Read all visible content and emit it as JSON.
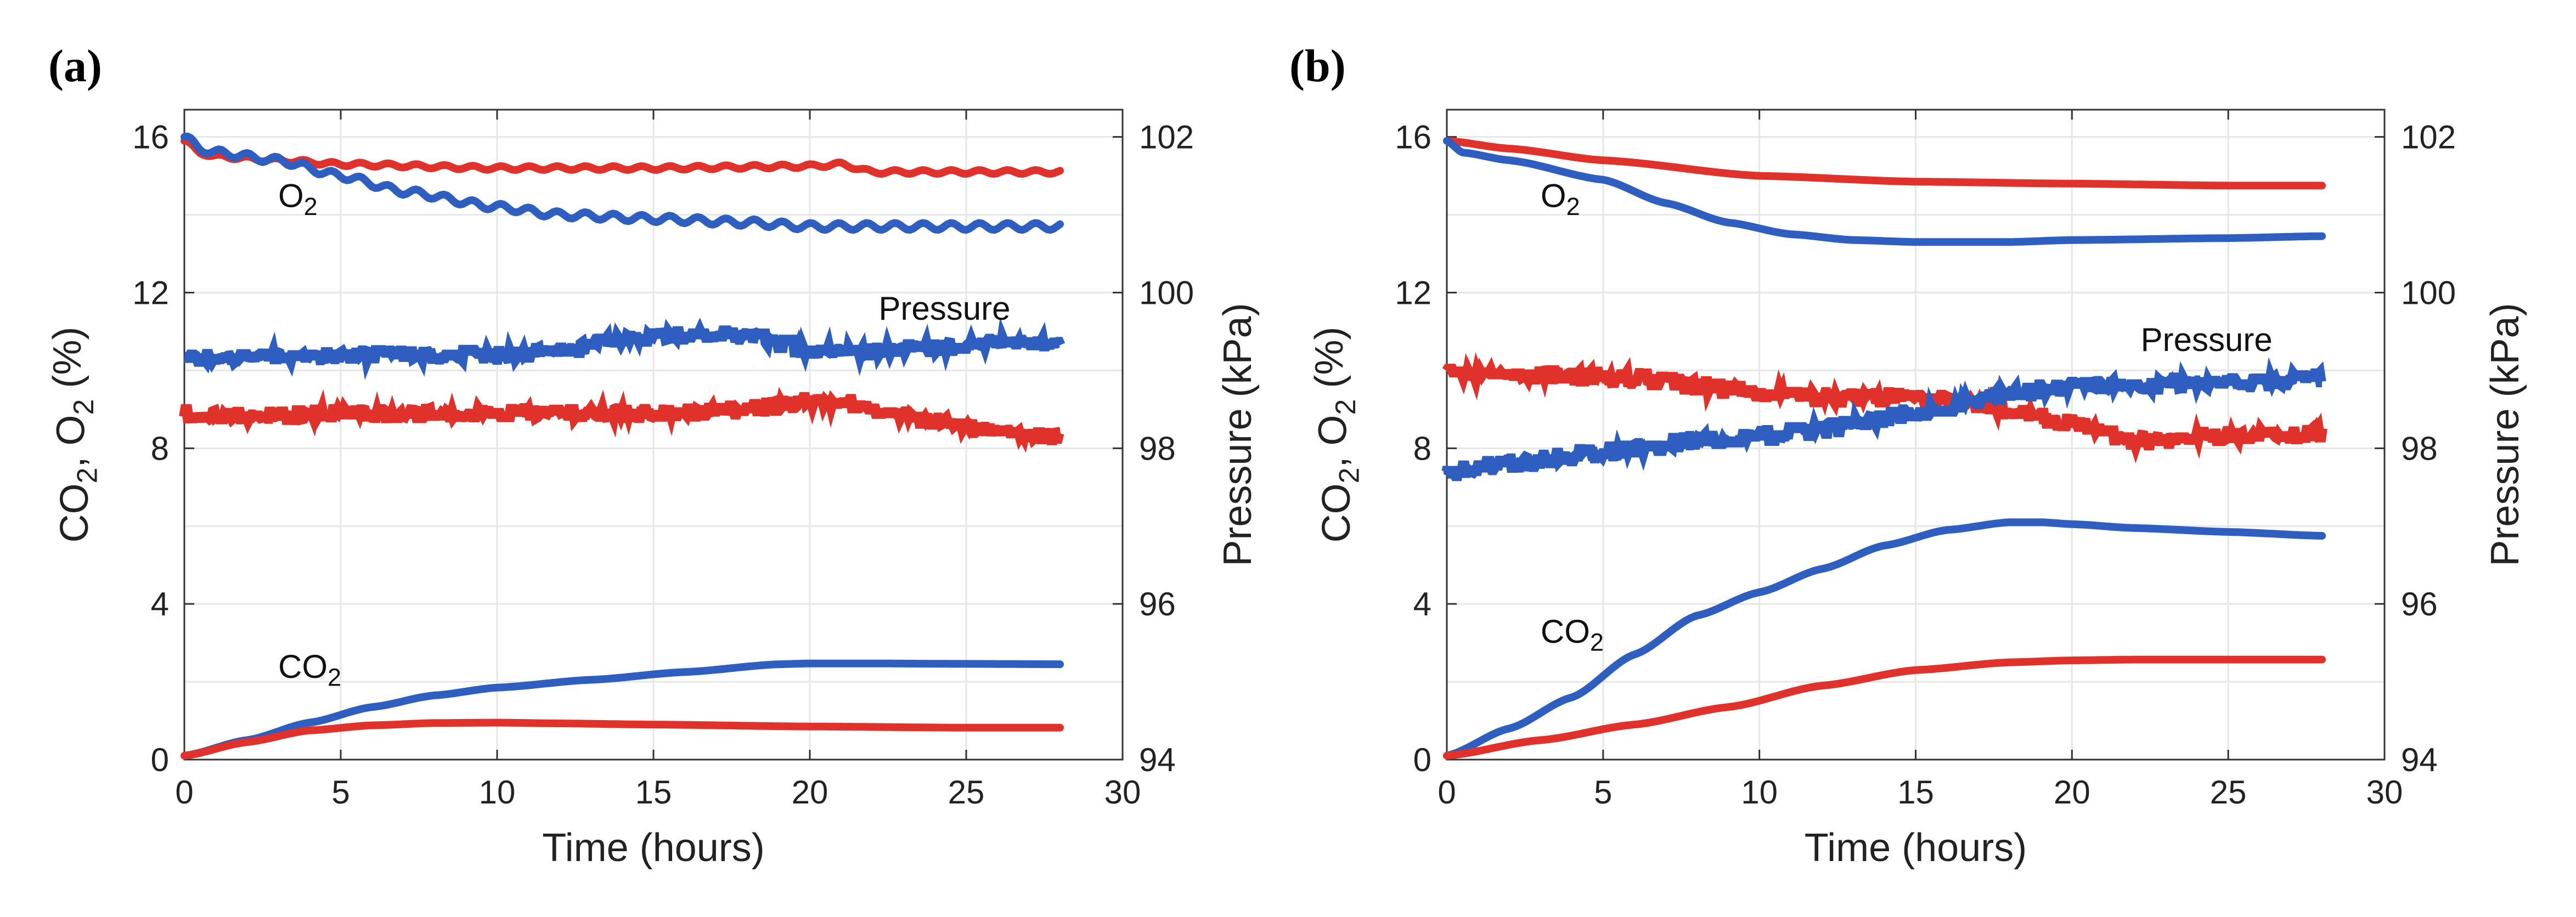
{
  "colors": {
    "red": "#E0322B",
    "blue": "#2E5FC0",
    "axis": "#333333",
    "grid": "#e6e6e6"
  },
  "chart_data": [
    {
      "type": "line",
      "panel_label": "(a)",
      "xlabel": "Time (hours)",
      "ylabel_left": {
        "base": "CO",
        "sub1": "2",
        "mid": ", O",
        "sub2": "2",
        "tail": " (%)"
      },
      "ylabel_right": "Pressure (kPa)",
      "xlim": [
        0,
        30
      ],
      "ylim_left": [
        0,
        16.7
      ],
      "ylim_right": [
        94,
        102.35
      ],
      "xticks": [
        "0",
        "5",
        "10",
        "15",
        "20",
        "25",
        "30"
      ],
      "yticks_left": [
        "0",
        "4",
        "8",
        "12",
        "16"
      ],
      "yticks_right": [
        "94",
        "96",
        "98",
        "100",
        "102"
      ],
      "grid": true,
      "annotations": [
        {
          "base": "O",
          "sub": "2",
          "x": 3.0,
          "y": 14.2
        },
        {
          "text": "Pressure",
          "x": 22.2,
          "y": 11.3
        },
        {
          "base": "CO",
          "sub": "2",
          "x": 3.0,
          "y": 2.1
        }
      ],
      "series": [
        {
          "color": "red",
          "axis": "left",
          "wave": 0.05,
          "x": [
            0,
            0.5,
            1,
            3,
            5,
            10,
            15,
            20,
            21,
            22,
            25,
            28
          ],
          "y": [
            15.9,
            15.6,
            15.5,
            15.4,
            15.3,
            15.2,
            15.2,
            15.25,
            15.3,
            15.1,
            15.1,
            15.1
          ]
        },
        {
          "color": "blue",
          "axis": "left",
          "wave": 0.09,
          "x": [
            0,
            0.5,
            1,
            3,
            5,
            7,
            10,
            12,
            15,
            18,
            20,
            25,
            28
          ],
          "y": [
            16.0,
            15.7,
            15.6,
            15.4,
            15.0,
            14.6,
            14.2,
            14.0,
            13.9,
            13.8,
            13.7,
            13.7,
            13.7
          ]
        },
        {
          "color": "blue",
          "axis": "right",
          "noise": 0.06,
          "style": "pressure",
          "x": [
            0,
            5,
            10,
            12,
            14,
            16,
            18,
            19,
            20,
            22,
            24,
            26,
            28
          ],
          "y": [
            99.15,
            99.2,
            99.2,
            99.25,
            99.4,
            99.45,
            99.45,
            99.35,
            99.25,
            99.25,
            99.3,
            99.35,
            99.35
          ]
        },
        {
          "color": "red",
          "axis": "right",
          "noise": 0.06,
          "style": "pressure",
          "x": [
            0,
            2,
            5,
            10,
            15,
            18,
            20,
            21,
            22,
            24,
            26,
            28
          ],
          "y": [
            98.45,
            98.4,
            98.45,
            98.45,
            98.45,
            98.5,
            98.6,
            98.6,
            98.5,
            98.35,
            98.2,
            98.15
          ]
        },
        {
          "color": "blue",
          "axis": "left",
          "x": [
            0,
            2,
            4,
            6,
            8,
            10,
            13,
            16,
            19,
            20,
            22,
            25,
            28
          ],
          "y": [
            0.1,
            0.5,
            0.95,
            1.35,
            1.65,
            1.85,
            2.05,
            2.25,
            2.45,
            2.47,
            2.47,
            2.46,
            2.45
          ]
        },
        {
          "color": "red",
          "axis": "left",
          "x": [
            0,
            2,
            4,
            6,
            8,
            10,
            12,
            15,
            20,
            25,
            28
          ],
          "y": [
            0.1,
            0.45,
            0.75,
            0.88,
            0.94,
            0.95,
            0.93,
            0.9,
            0.85,
            0.82,
            0.82
          ]
        }
      ]
    },
    {
      "type": "line",
      "panel_label": "(b)",
      "xlabel": "Time (hours)",
      "ylabel_left": {
        "base": "CO",
        "sub1": "2",
        "mid": ", O",
        "sub2": "2",
        "tail": " (%)"
      },
      "ylabel_right": "Pressure (kPa)",
      "xlim": [
        0,
        30
      ],
      "ylim_left": [
        0,
        16.7
      ],
      "ylim_right": [
        94,
        102.35
      ],
      "xticks": [
        "0",
        "5",
        "10",
        "15",
        "20",
        "25",
        "30"
      ],
      "yticks_left": [
        "0",
        "4",
        "8",
        "12",
        "16"
      ],
      "yticks_right": [
        "94",
        "96",
        "98",
        "100",
        "102"
      ],
      "grid": true,
      "annotations": [
        {
          "base": "O",
          "sub": "2",
          "x": 3.0,
          "y": 14.2
        },
        {
          "text": "Pressure",
          "x": 22.2,
          "y": 10.5
        },
        {
          "base": "CO",
          "sub": "2",
          "x": 3.0,
          "y": 3.0
        }
      ],
      "series": [
        {
          "color": "red",
          "axis": "left",
          "x": [
            0,
            2,
            5,
            10,
            15,
            20,
            25,
            28
          ],
          "y": [
            15.9,
            15.7,
            15.4,
            15.0,
            14.85,
            14.8,
            14.75,
            14.75
          ]
        },
        {
          "color": "blue",
          "axis": "left",
          "x": [
            0,
            0.5,
            2,
            5,
            7,
            9,
            11,
            13,
            15,
            18,
            20,
            25,
            28
          ],
          "y": [
            15.9,
            15.6,
            15.4,
            14.9,
            14.3,
            13.8,
            13.5,
            13.35,
            13.3,
            13.3,
            13.35,
            13.4,
            13.45
          ]
        },
        {
          "color": "red",
          "axis": "right",
          "noise": 0.07,
          "style": "pressure",
          "x": [
            0,
            3,
            6,
            8,
            10,
            12,
            15,
            18,
            20,
            22,
            25,
            28
          ],
          "y": [
            98.95,
            98.95,
            98.9,
            98.8,
            98.7,
            98.65,
            98.65,
            98.5,
            98.3,
            98.1,
            98.15,
            98.2
          ]
        },
        {
          "color": "blue",
          "axis": "right",
          "noise": 0.07,
          "style": "pressure",
          "x": [
            0,
            2,
            5,
            8,
            10,
            12,
            15,
            18,
            20,
            25,
            28
          ],
          "y": [
            97.7,
            97.8,
            97.95,
            98.1,
            98.15,
            98.25,
            98.45,
            98.7,
            98.8,
            98.85,
            98.9
          ]
        },
        {
          "color": "blue",
          "axis": "left",
          "x": [
            0,
            2,
            4,
            6,
            8,
            10,
            12,
            14,
            16,
            18,
            19,
            20,
            22,
            25,
            28
          ],
          "y": [
            0.1,
            0.8,
            1.6,
            2.7,
            3.7,
            4.3,
            4.9,
            5.5,
            5.9,
            6.1,
            6.1,
            6.05,
            5.95,
            5.85,
            5.75
          ]
        },
        {
          "color": "red",
          "axis": "left",
          "x": [
            0,
            3,
            6,
            9,
            12,
            15,
            18,
            20,
            22,
            25,
            28
          ],
          "y": [
            0.1,
            0.5,
            0.9,
            1.35,
            1.9,
            2.3,
            2.5,
            2.55,
            2.57,
            2.57,
            2.57
          ]
        }
      ]
    }
  ]
}
